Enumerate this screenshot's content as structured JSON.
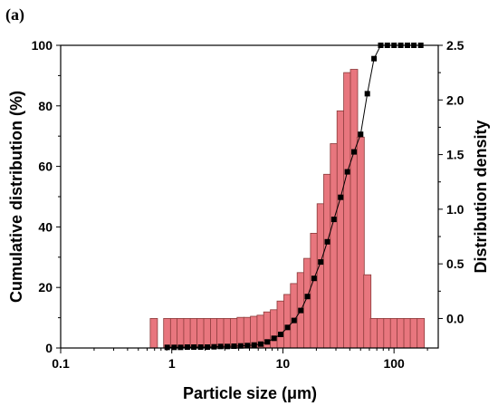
{
  "panel_label": "(a)",
  "chart_data": {
    "type": "bar",
    "xlabel": "Particle size (μm)",
    "ylabel_left": "Cumulative distribution (%)",
    "ylabel_right": "Distribution density",
    "x_scale": "log",
    "xlim": [
      0.1,
      250
    ],
    "ylim_left": [
      0,
      100
    ],
    "ylim_right": [
      -0.27,
      2.5
    ],
    "x_ticks": [
      0.1,
      1,
      10,
      100
    ],
    "x_tick_labels": [
      "0.1",
      "1",
      "10",
      "100"
    ],
    "y_left_ticks": [
      0,
      20,
      40,
      60,
      80,
      100
    ],
    "y_right_ticks": [
      0.0,
      0.5,
      1.0,
      1.5,
      2.0,
      2.5
    ],
    "y_right_tick_labels": [
      "0.0",
      "0.5",
      "1.0",
      "1.5",
      "2.0",
      "2.5"
    ],
    "bar_color": "#e8767e",
    "bar_edge_color": "#8a3a3a",
    "line_color": "#000000",
    "marker_color": "#000000",
    "series": [
      {
        "kind": "bar",
        "axis": "right",
        "x": [
          0.69,
          0.91,
          1.05,
          1.2,
          1.38,
          1.58,
          1.82,
          2.09,
          2.4,
          2.75,
          3.16,
          3.63,
          4.17,
          4.79,
          5.5,
          6.31,
          7.24,
          8.32,
          9.55,
          11.0,
          12.6,
          14.5,
          16.6,
          19.1,
          21.9,
          25.1,
          28.8,
          33.1,
          38.0,
          43.7,
          50.1,
          57.5,
          66.1,
          75.9,
          87.1,
          100,
          115,
          132,
          151,
          174
        ],
        "values": [
          0.0,
          0.0,
          0.0,
          0.0,
          0.0,
          0.0,
          0.0,
          0.0,
          0.0,
          0.0,
          0.0,
          0.0,
          0.01,
          0.01,
          0.02,
          0.03,
          0.06,
          0.08,
          0.16,
          0.22,
          0.32,
          0.42,
          0.55,
          0.78,
          1.05,
          1.32,
          1.6,
          1.9,
          2.25,
          2.28,
          1.66,
          0.4,
          0.0,
          0.0,
          0.0,
          0.0,
          0.0,
          0.0,
          0.0,
          0.0
        ]
      },
      {
        "kind": "line",
        "axis": "left",
        "x": [
          0.91,
          1.05,
          1.2,
          1.38,
          1.58,
          1.82,
          2.09,
          2.4,
          2.75,
          3.16,
          3.63,
          4.17,
          4.79,
          5.5,
          6.31,
          7.24,
          8.32,
          9.55,
          11.0,
          12.6,
          14.5,
          16.6,
          19.1,
          21.9,
          25.1,
          28.8,
          33.1,
          38.0,
          43.7,
          50.1,
          57.5,
          66.1,
          75.9,
          87.1,
          100,
          115,
          132,
          151,
          174
        ],
        "values": [
          0.2,
          0.2,
          0.2,
          0.3,
          0.3,
          0.3,
          0.3,
          0.4,
          0.5,
          0.5,
          0.6,
          0.7,
          0.8,
          1.0,
          1.3,
          2.0,
          3.2,
          4.5,
          6.8,
          9.1,
          12.4,
          17.0,
          23.0,
          28.4,
          35.1,
          42.5,
          49.8,
          58.2,
          64.8,
          70.6,
          84.0,
          95.6,
          100,
          100,
          100,
          100,
          100,
          100,
          100
        ]
      }
    ]
  }
}
